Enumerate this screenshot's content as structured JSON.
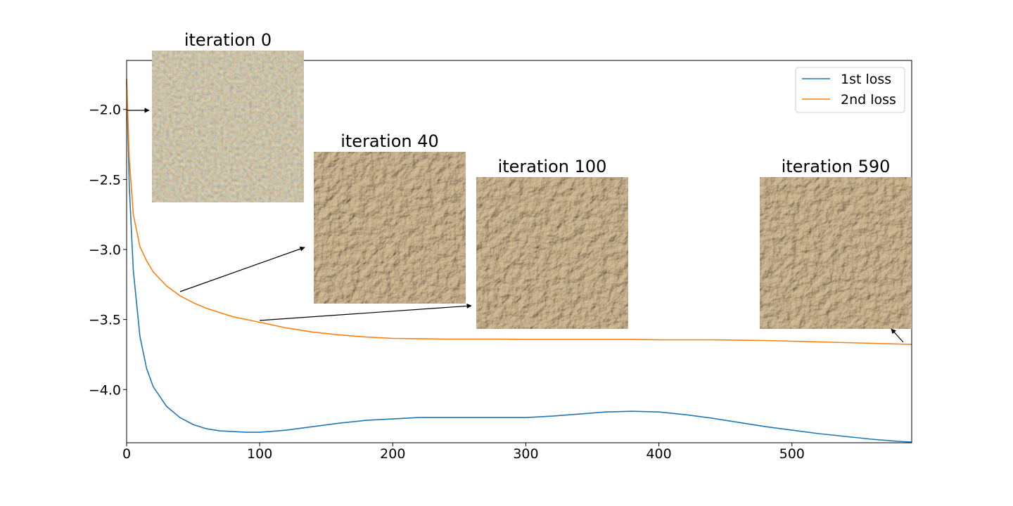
{
  "chart_data": {
    "type": "line",
    "title": "",
    "xlabel": "",
    "ylabel": "",
    "xlim": [
      0,
      590
    ],
    "ylim": [
      -4.38,
      -1.65
    ],
    "xticks": [
      0,
      100,
      200,
      300,
      400,
      500
    ],
    "yticks": [
      -2.0,
      -2.5,
      -3.0,
      -3.5,
      -4.0
    ],
    "xtick_labels": [
      "0",
      "100",
      "200",
      "300",
      "400",
      "500"
    ],
    "ytick_labels": [
      "−2.0",
      "−2.5",
      "−3.0",
      "−3.5",
      "−4.0"
    ],
    "grid": false,
    "legend_position": "top-right",
    "series": [
      {
        "name": "1st loss",
        "color": "#1f77b4",
        "x": [
          0,
          2,
          5,
          10,
          15,
          20,
          30,
          40,
          50,
          60,
          70,
          80,
          90,
          100,
          120,
          140,
          160,
          180,
          200,
          220,
          240,
          260,
          280,
          300,
          320,
          340,
          360,
          380,
          400,
          420,
          440,
          460,
          480,
          500,
          520,
          540,
          560,
          580,
          590
        ],
        "y": [
          -1.8,
          -2.55,
          -3.15,
          -3.62,
          -3.85,
          -3.98,
          -4.12,
          -4.2,
          -4.25,
          -4.28,
          -4.295,
          -4.3,
          -4.305,
          -4.305,
          -4.29,
          -4.265,
          -4.24,
          -4.22,
          -4.21,
          -4.2,
          -4.2,
          -4.2,
          -4.2,
          -4.2,
          -4.19,
          -4.175,
          -4.16,
          -4.155,
          -4.16,
          -4.18,
          -4.205,
          -4.235,
          -4.265,
          -4.29,
          -4.315,
          -4.335,
          -4.355,
          -4.37,
          -4.375
        ]
      },
      {
        "name": "2nd loss",
        "color": "#ff7f0e",
        "x": [
          0,
          2,
          5,
          10,
          15,
          20,
          30,
          40,
          50,
          60,
          80,
          100,
          120,
          140,
          160,
          180,
          200,
          220,
          240,
          260,
          280,
          300,
          320,
          340,
          360,
          380,
          400,
          420,
          440,
          460,
          480,
          500,
          520,
          540,
          560,
          580,
          590
        ],
        "y": [
          -1.78,
          -2.35,
          -2.75,
          -2.98,
          -3.08,
          -3.16,
          -3.26,
          -3.33,
          -3.38,
          -3.42,
          -3.48,
          -3.52,
          -3.56,
          -3.59,
          -3.61,
          -3.625,
          -3.635,
          -3.637,
          -3.64,
          -3.64,
          -3.64,
          -3.642,
          -3.642,
          -3.642,
          -3.642,
          -3.642,
          -3.645,
          -3.645,
          -3.645,
          -3.648,
          -3.65,
          -3.655,
          -3.66,
          -3.665,
          -3.67,
          -3.675,
          -3.678
        ]
      }
    ],
    "insets": [
      {
        "title": "iteration 0",
        "texture": "noisy"
      },
      {
        "title": "iteration 40",
        "texture": "sand"
      },
      {
        "title": "iteration 100",
        "texture": "sand"
      },
      {
        "title": "iteration 590",
        "texture": "sand"
      }
    ]
  }
}
